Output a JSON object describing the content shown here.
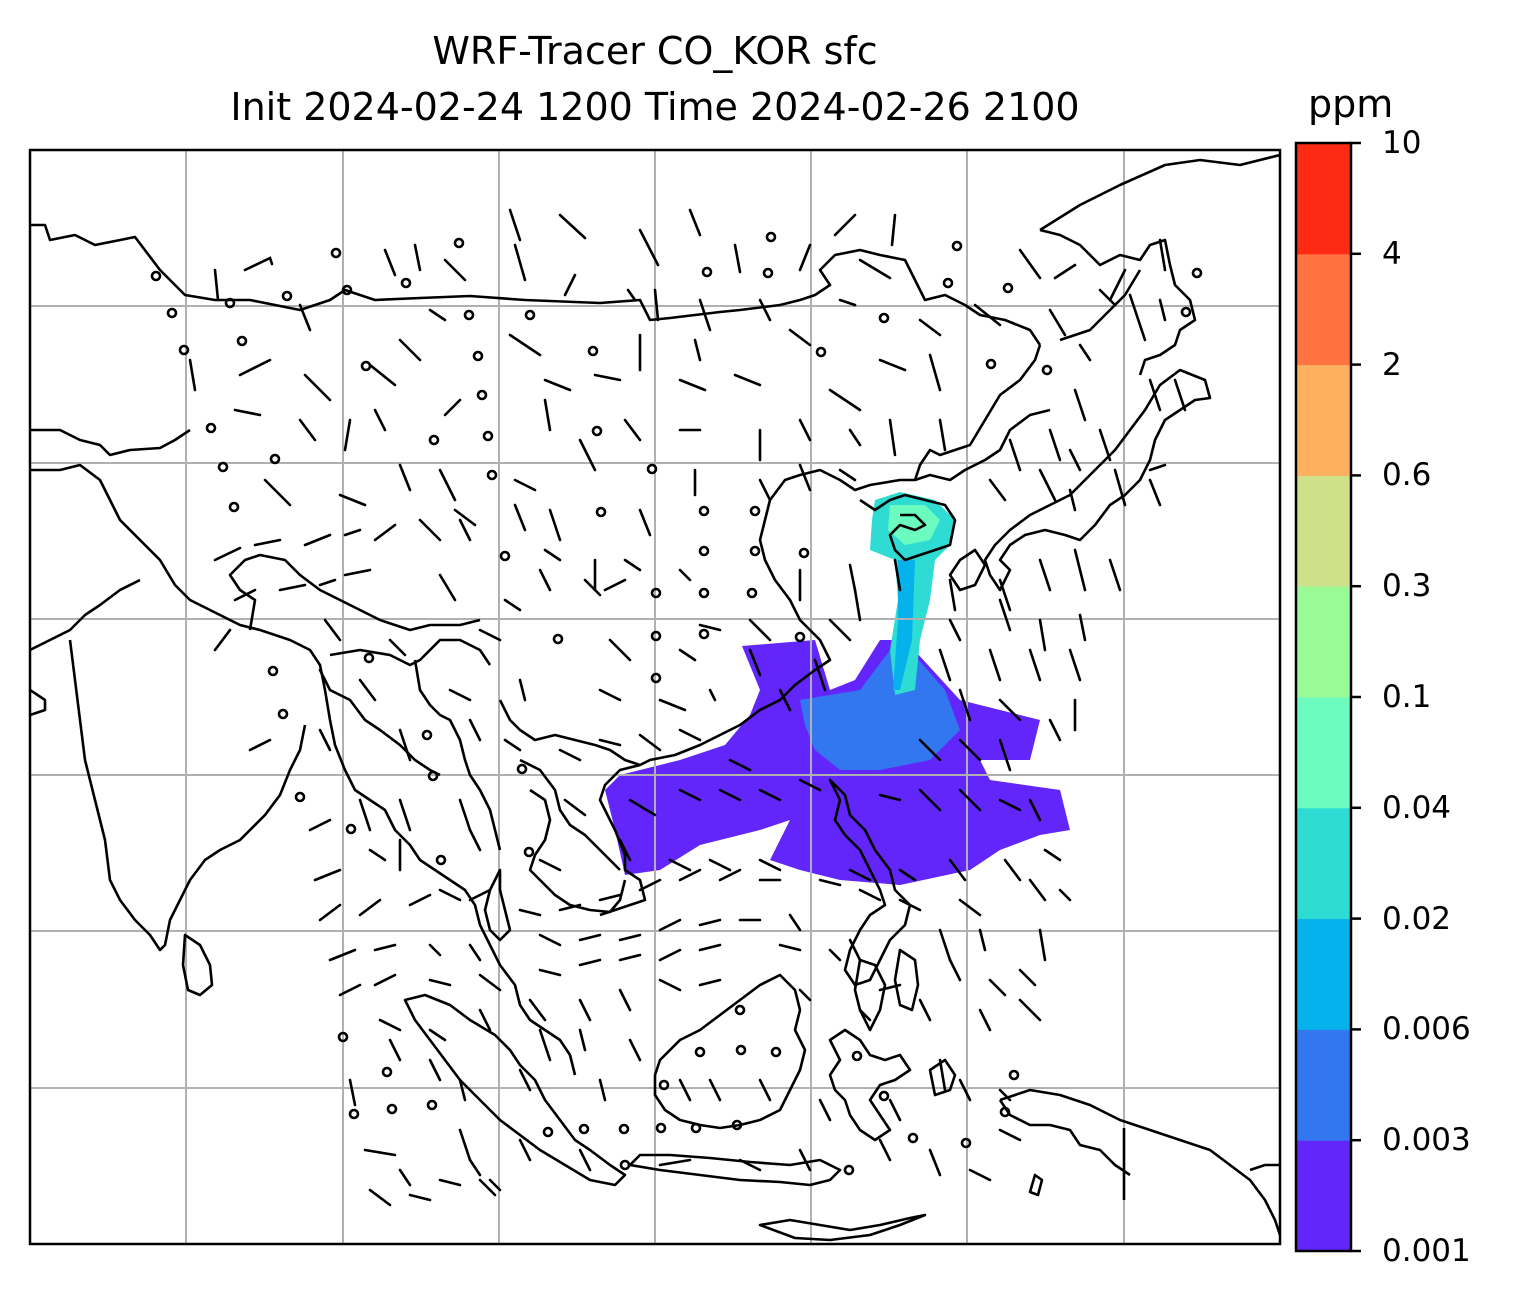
{
  "title": {
    "line1": "WRF-Tracer CO_KOR sfc",
    "line2": "Init 2024-02-24 1200 Time 2024-02-26 2100"
  },
  "colorbar": {
    "units": "ppm",
    "levels": [
      "0.001",
      "0.003",
      "0.006",
      "0.02",
      "0.04",
      "0.1",
      "0.3",
      "0.6",
      "2",
      "4",
      "10"
    ],
    "colors": [
      "#6326fa",
      "#3276f0",
      "#05b2ec",
      "#2edcd3",
      "#6bfbbe",
      "#99fa96",
      "#cfe08a",
      "#feb060",
      "#fe7340",
      "#fd2a14"
    ]
  },
  "map": {
    "gridlines": true,
    "features": [
      "coastlines",
      "country-borders",
      "wind-barbs",
      "tracer-plume"
    ]
  }
}
